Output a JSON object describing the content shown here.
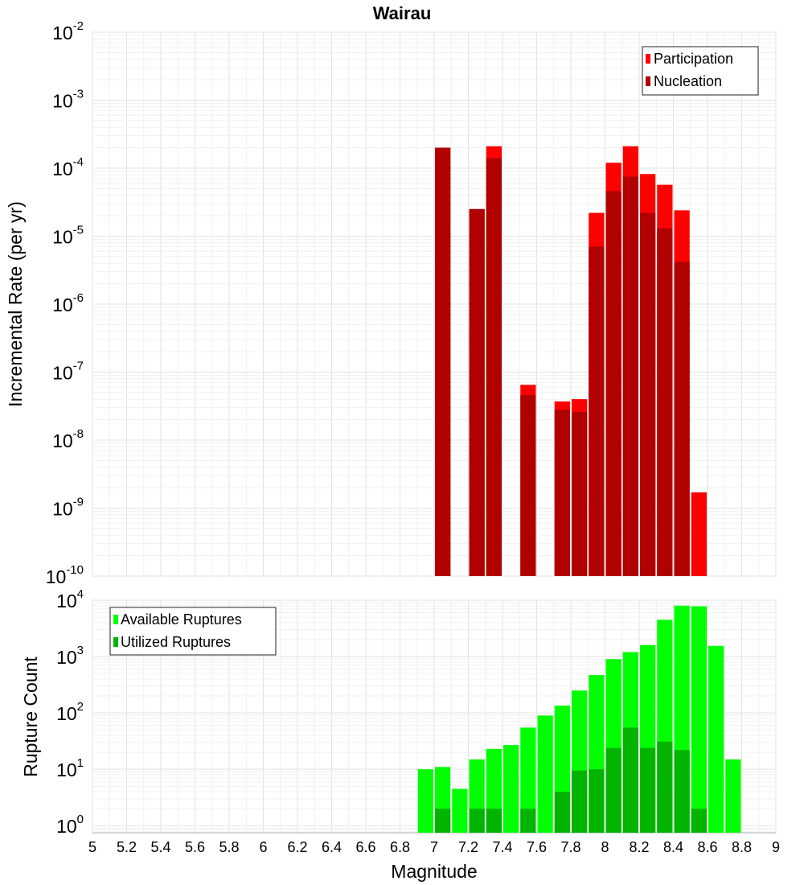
{
  "chart_data": [
    {
      "type": "bar",
      "title": "Wairau",
      "ylabel": "Incremental Rate (per yr)",
      "xlabel": "",
      "yscale": "log",
      "ylim": [
        1e-10,
        0.01
      ],
      "xlim": [
        5,
        9
      ],
      "ytick_base": "10",
      "ytick_exponents": [
        "-10",
        "-9",
        "-8",
        "-7",
        "-6",
        "-5",
        "-4",
        "-3",
        "-2"
      ],
      "bin_width": 0.1,
      "legend_position": "top-right",
      "series": [
        {
          "name": "Participation",
          "color": "#ff0000",
          "points": [
            [
              7.05,
              0.0002
            ],
            [
              7.25,
              2.5e-05
            ],
            [
              7.35,
              0.00021
            ],
            [
              7.55,
              6.5e-08
            ],
            [
              7.75,
              3.7e-08
            ],
            [
              7.85,
              4e-08
            ],
            [
              7.95,
              2.2e-05
            ],
            [
              8.05,
              0.00012
            ],
            [
              8.15,
              0.00021
            ],
            [
              8.25,
              8.2e-05
            ],
            [
              8.35,
              5.7e-05
            ],
            [
              8.45,
              2.4e-05
            ],
            [
              8.55,
              1.7e-09
            ]
          ]
        },
        {
          "name": "Nucleation",
          "color": "#b00000",
          "points": [
            [
              7.05,
              0.0002
            ],
            [
              7.25,
              2.5e-05
            ],
            [
              7.35,
              0.00014
            ],
            [
              7.55,
              4.6e-08
            ],
            [
              7.75,
              2.8e-08
            ],
            [
              7.85,
              2.6e-08
            ],
            [
              7.95,
              7e-06
            ],
            [
              8.05,
              4.6e-05
            ],
            [
              8.15,
              7.5e-05
            ],
            [
              8.25,
              2.2e-05
            ],
            [
              8.35,
              1.3e-05
            ],
            [
              8.45,
              4.2e-06
            ]
          ]
        }
      ]
    },
    {
      "type": "bar",
      "title": "",
      "ylabel": "Rupture Count",
      "xlabel": "Magnitude",
      "yscale": "log",
      "ylim": [
        0.75,
        10000
      ],
      "xlim": [
        5,
        9
      ],
      "ytick_base": "10",
      "ytick_exponents": [
        "0",
        "1",
        "2",
        "3",
        "4"
      ],
      "xticks": [
        "5",
        "5.2",
        "5.4",
        "5.6",
        "5.8",
        "6",
        "6.2",
        "6.4",
        "6.6",
        "6.8",
        "7",
        "7.2",
        "7.4",
        "7.6",
        "7.8",
        "8",
        "8.2",
        "8.4",
        "8.6",
        "8.8",
        "9"
      ],
      "bin_width": 0.1,
      "legend_position": "top-left",
      "series": [
        {
          "name": "Available Ruptures",
          "color": "#00ff00",
          "points": [
            [
              6.95,
              10
            ],
            [
              7.05,
              11
            ],
            [
              7.15,
              4.5
            ],
            [
              7.25,
              15
            ],
            [
              7.35,
              23
            ],
            [
              7.45,
              27
            ],
            [
              7.55,
              55
            ],
            [
              7.65,
              90
            ],
            [
              7.75,
              135
            ],
            [
              7.85,
              250
            ],
            [
              7.95,
              470
            ],
            [
              8.05,
              900
            ],
            [
              8.15,
              1200
            ],
            [
              8.25,
              1600
            ],
            [
              8.35,
              4500
            ],
            [
              8.45,
              8000
            ],
            [
              8.55,
              7800
            ],
            [
              8.65,
              1550
            ],
            [
              8.75,
              15
            ]
          ]
        },
        {
          "name": "Utilized Ruptures",
          "color": "#00b400",
          "points": [
            [
              7.05,
              2
            ],
            [
              7.25,
              2
            ],
            [
              7.35,
              2
            ],
            [
              7.55,
              2
            ],
            [
              7.75,
              4
            ],
            [
              7.85,
              9.5
            ],
            [
              7.95,
              10
            ],
            [
              8.05,
              24
            ],
            [
              8.15,
              55
            ],
            [
              8.25,
              24
            ],
            [
              8.35,
              31
            ],
            [
              8.45,
              22
            ],
            [
              8.55,
              2
            ]
          ]
        }
      ]
    }
  ]
}
